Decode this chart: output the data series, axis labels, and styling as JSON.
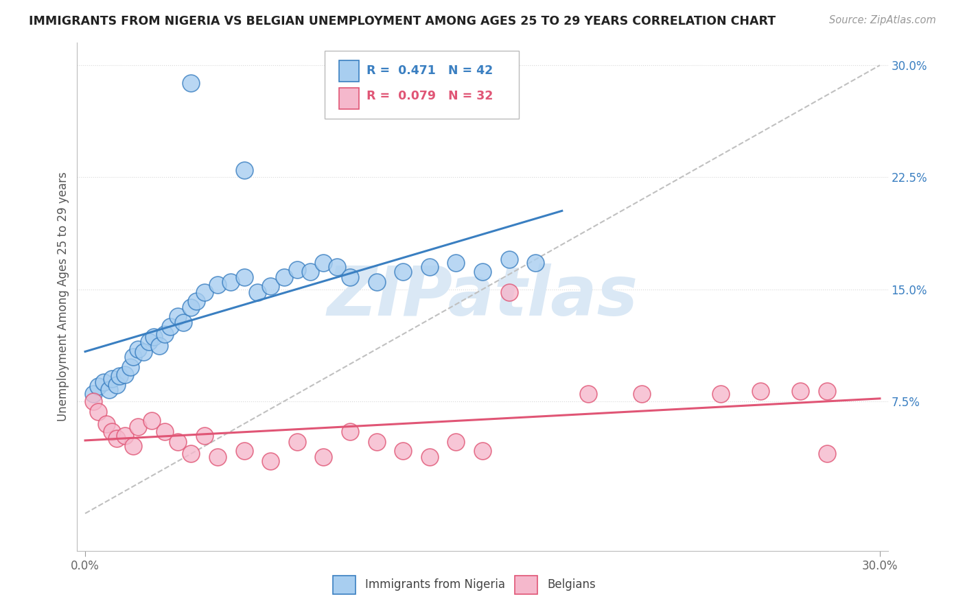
{
  "title": "IMMIGRANTS FROM NIGERIA VS BELGIAN UNEMPLOYMENT AMONG AGES 25 TO 29 YEARS CORRELATION CHART",
  "source": "Source: ZipAtlas.com",
  "ylabel": "Unemployment Among Ages 25 to 29 years",
  "r1": "0.471",
  "n1": "42",
  "r2": "0.079",
  "n2": "32",
  "color_blue": "#a8cef0",
  "color_pink": "#f5b8cc",
  "line_blue": "#3a7fc1",
  "line_pink": "#e05575",
  "line_diag": "#c0c0c0",
  "grid_color": "#d8d8d8",
  "watermark_color": "#dae8f5",
  "legend1_label": "Immigrants from Nigeria",
  "legend2_label": "Belgians",
  "blue_x": [
    0.003,
    0.005,
    0.007,
    0.009,
    0.01,
    0.012,
    0.013,
    0.015,
    0.017,
    0.018,
    0.02,
    0.022,
    0.024,
    0.026,
    0.028,
    0.03,
    0.032,
    0.035,
    0.037,
    0.04,
    0.042,
    0.045,
    0.05,
    0.055,
    0.06,
    0.065,
    0.07,
    0.075,
    0.08,
    0.085,
    0.09,
    0.095,
    0.1,
    0.11,
    0.12,
    0.13,
    0.14,
    0.15,
    0.16,
    0.17,
    0.04,
    0.06
  ],
  "blue_y": [
    0.08,
    0.085,
    0.088,
    0.083,
    0.09,
    0.086,
    0.092,
    0.093,
    0.098,
    0.105,
    0.11,
    0.108,
    0.115,
    0.118,
    0.112,
    0.12,
    0.125,
    0.132,
    0.128,
    0.138,
    0.142,
    0.148,
    0.153,
    0.155,
    0.158,
    0.148,
    0.152,
    0.158,
    0.163,
    0.162,
    0.168,
    0.165,
    0.158,
    0.155,
    0.162,
    0.165,
    0.168,
    0.162,
    0.17,
    0.168,
    0.288,
    0.23
  ],
  "pink_x": [
    0.003,
    0.005,
    0.008,
    0.01,
    0.012,
    0.015,
    0.018,
    0.02,
    0.025,
    0.03,
    0.035,
    0.04,
    0.045,
    0.05,
    0.06,
    0.07,
    0.08,
    0.09,
    0.1,
    0.11,
    0.12,
    0.13,
    0.14,
    0.15,
    0.16,
    0.19,
    0.21,
    0.24,
    0.255,
    0.27,
    0.28,
    0.28
  ],
  "pink_y": [
    0.075,
    0.068,
    0.06,
    0.055,
    0.05,
    0.052,
    0.045,
    0.058,
    0.062,
    0.055,
    0.048,
    0.04,
    0.052,
    0.038,
    0.042,
    0.035,
    0.048,
    0.038,
    0.055,
    0.048,
    0.042,
    0.038,
    0.048,
    0.042,
    0.148,
    0.08,
    0.08,
    0.08,
    0.082,
    0.082,
    0.082,
    0.04
  ],
  "xlim": [
    0.0,
    0.3
  ],
  "ylim": [
    -0.02,
    0.31
  ],
  "ytick_vals": [
    0.075,
    0.15,
    0.225,
    0.3
  ],
  "ytick_labels": [
    "7.5%",
    "15.0%",
    "22.5%",
    "30.0%"
  ],
  "xtick_vals": [
    0.0,
    0.3
  ],
  "xtick_labels": [
    "0.0%",
    "30.0%"
  ]
}
